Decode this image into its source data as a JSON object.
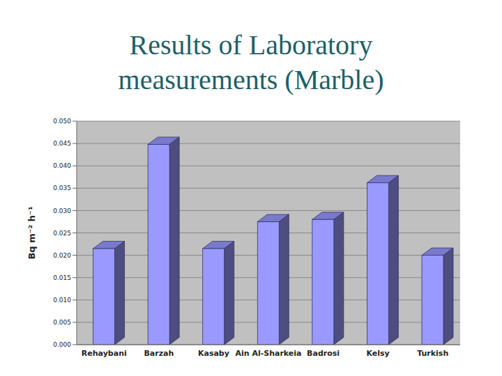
{
  "chart_data": {
    "type": "bar",
    "title": "Results of Laboratory measurements (Marble)",
    "ylabel": "Bq m⁻² h⁻¹",
    "categories": [
      "Rehaybani",
      "Barzah",
      "Kasaby",
      "Ain Al-Sharkeia",
      "Badrosi",
      "Kelsy",
      "Turkish"
    ],
    "values": [
      0.0215,
      0.0448,
      0.0215,
      0.0275,
      0.028,
      0.0362,
      0.02
    ],
    "color": "#9999ff",
    "ylim": [
      0,
      0.05
    ],
    "yticks": [
      {
        "value": 0,
        "label": "0.000"
      },
      {
        "value": 0.005,
        "label": "0.005"
      },
      {
        "value": 0.01,
        "label": "0.010"
      },
      {
        "value": 0.015,
        "label": "0.015"
      },
      {
        "value": 0.02,
        "label": "0.020"
      },
      {
        "value": 0.025,
        "label": "0.025"
      },
      {
        "value": 0.03,
        "label": "0.030"
      },
      {
        "value": 0.035,
        "label": "0.035"
      },
      {
        "value": 0.04,
        "label": "0.040"
      },
      {
        "value": 0.045,
        "label": "0.045"
      },
      {
        "value": 0.05,
        "label": "0.050"
      }
    ],
    "grid": true
  }
}
